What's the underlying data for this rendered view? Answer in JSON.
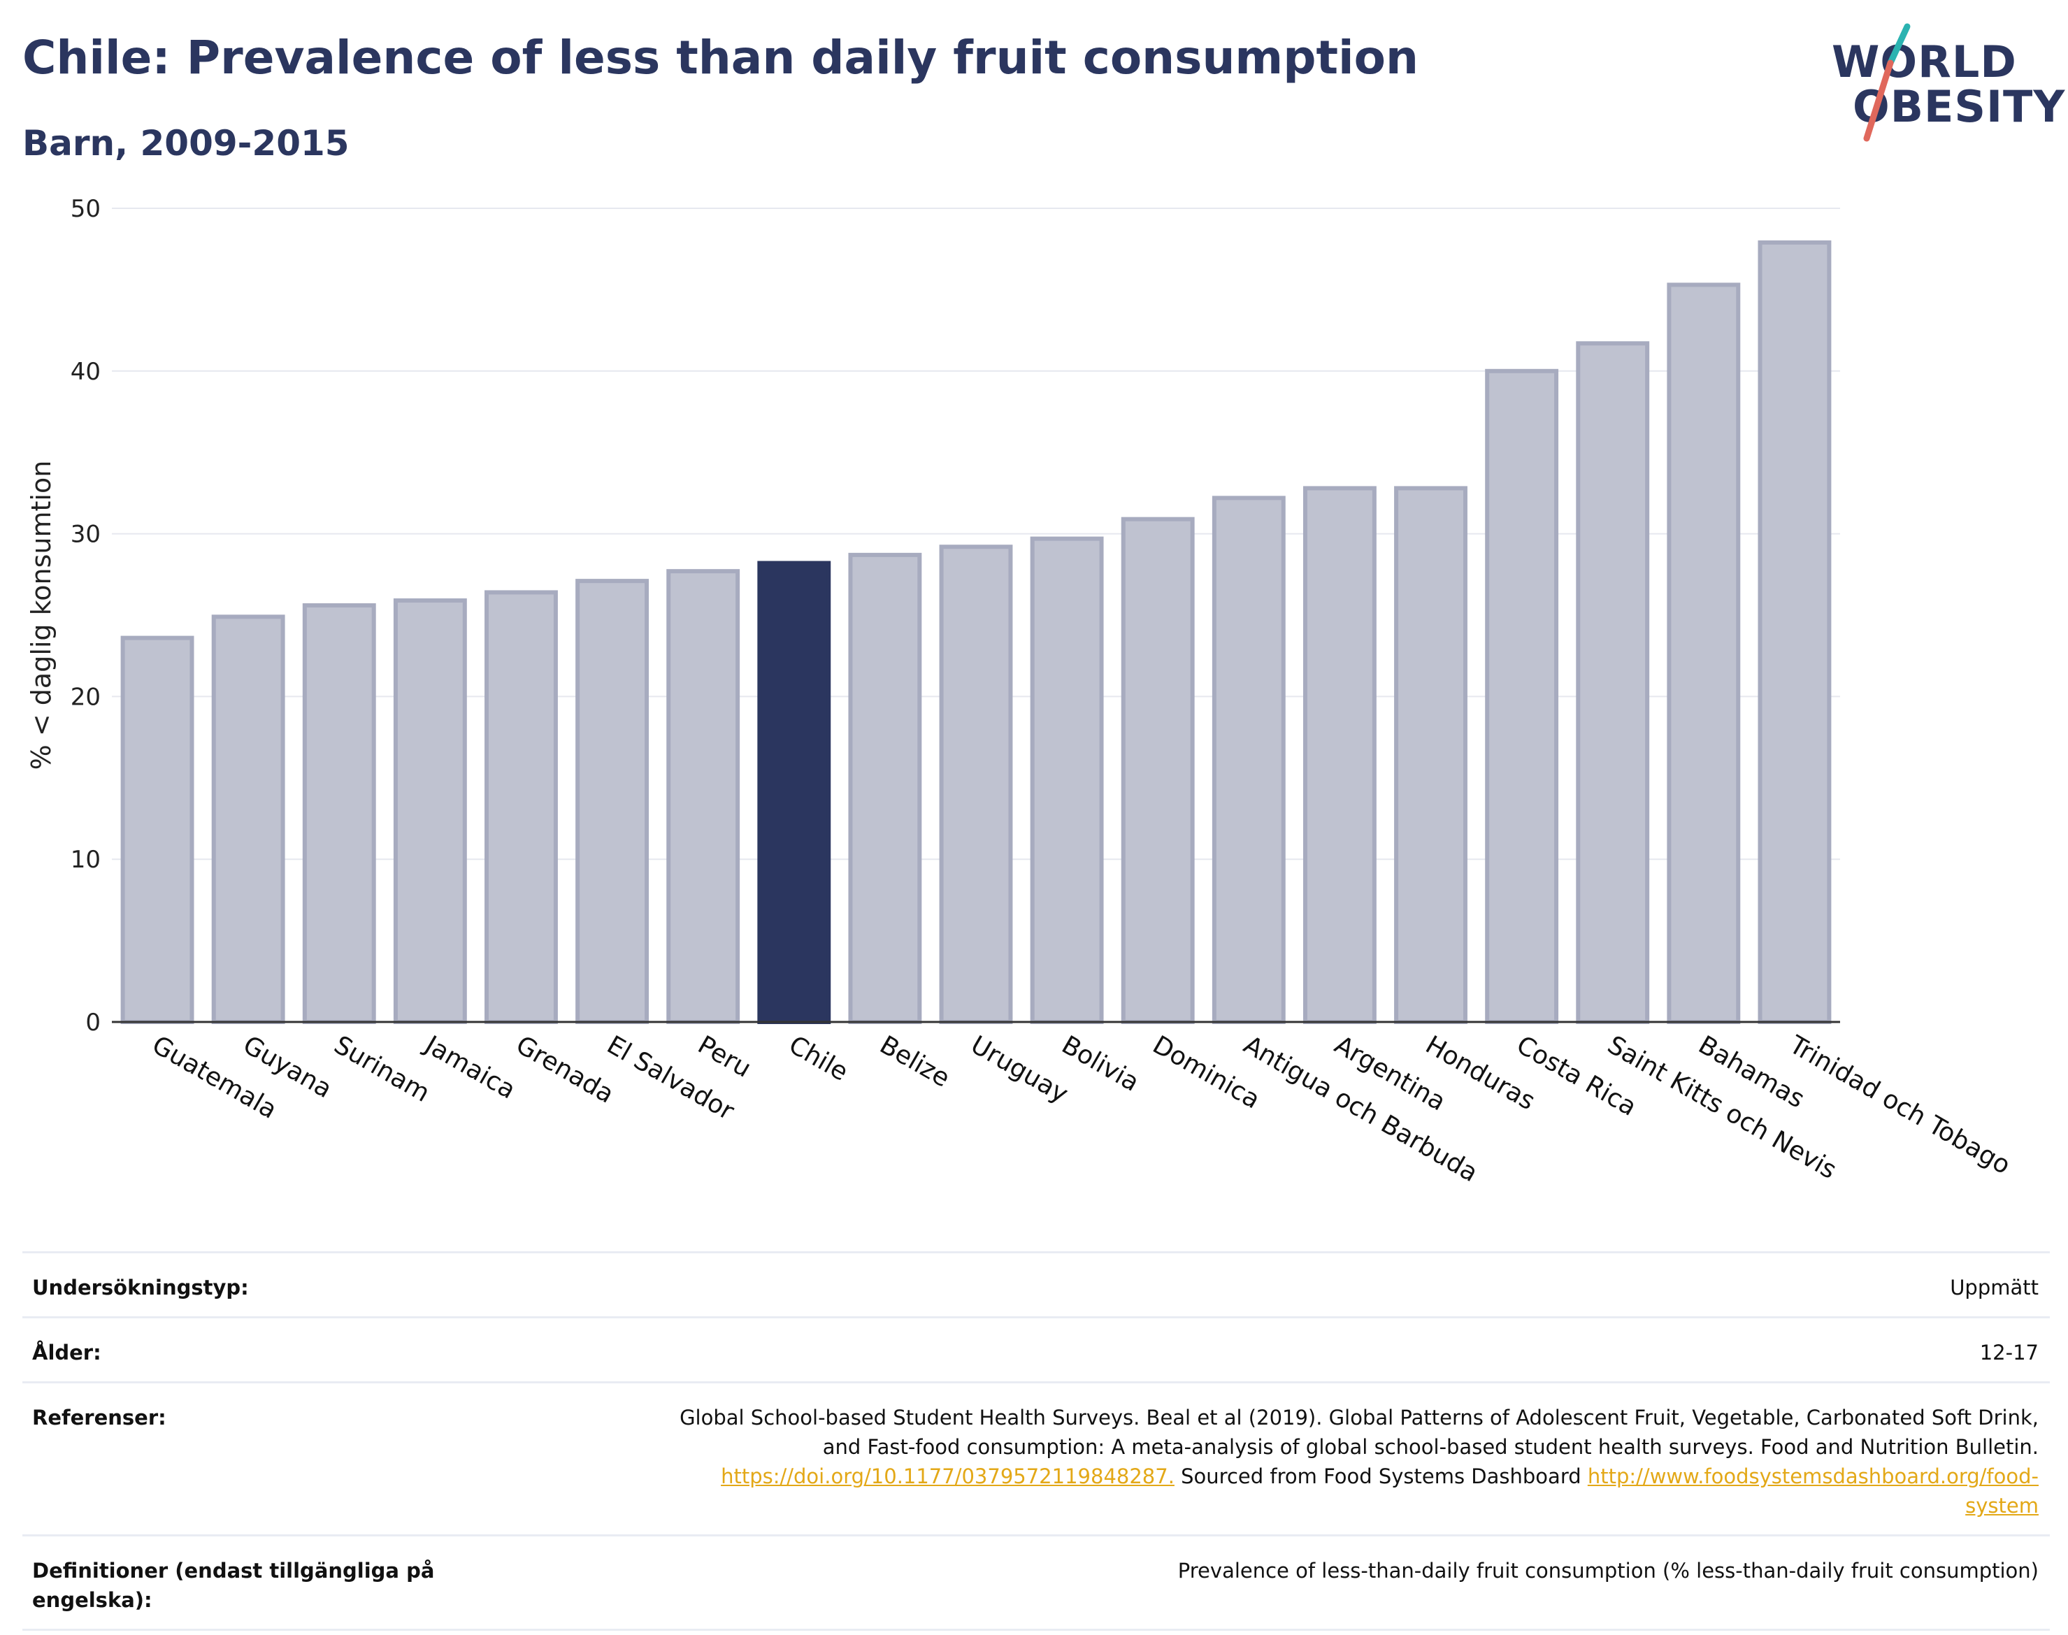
{
  "header": {
    "title": "Chile: Prevalence of less than daily fruit consumption",
    "subtitle": "Barn, 2009-2015",
    "logo_line1": "WORLD",
    "logo_line2": "OBESITY"
  },
  "colors": {
    "highlight_bar": "#2b365f",
    "other_bar": "#bfc2d0",
    "other_bar_border": "#a7abbf",
    "title": "#2b365f",
    "link": "#e3a817",
    "logo_teal": "#2bb3b1",
    "logo_coral": "#e0685c"
  },
  "chart_data": {
    "type": "bar",
    "title": "Chile: Prevalence of less than daily fruit consumption",
    "subtitle": "Barn, 2009-2015",
    "ylabel": "% < daglig konsumtion",
    "xlabel": "",
    "ylim": [
      0,
      50
    ],
    "yticks": [
      0,
      10,
      20,
      30,
      40,
      50
    ],
    "grid": true,
    "highlight": "Chile",
    "categories": [
      "Guatemala",
      "Guyana",
      "Surinam",
      "Jamaica",
      "Grenada",
      "El Salvador",
      "Peru",
      "Chile",
      "Belize",
      "Uruguay",
      "Bolivia",
      "Dominica",
      "Antigua och Barbuda",
      "Argentina",
      "Honduras",
      "Costa Rica",
      "Saint Kitts och Nevis",
      "Bahamas",
      "Trinidad och Tobago"
    ],
    "values": [
      23.6,
      24.9,
      25.6,
      25.9,
      26.4,
      27.1,
      27.7,
      28.2,
      28.7,
      29.2,
      29.7,
      30.9,
      32.2,
      32.8,
      32.8,
      40.0,
      41.7,
      45.3,
      47.9
    ]
  },
  "info": {
    "rows": [
      {
        "key": "Undersökningstyp:",
        "value": "Uppmätt"
      },
      {
        "key": "Ålder:",
        "value": "12-17"
      },
      {
        "key": "Referenser:",
        "value_lines": [
          "Global School-based Student Health Surveys. Beal et al (2019). Global Patterns of Adolescent Fruit, Vegetable, Carbonated Soft Drink,",
          "and Fast-food consumption: A meta-analysis of global school-based student health surveys. Food and Nutrition Bulletin."
        ],
        "link1": "https://doi.org/10.1177/0379572119848287.",
        "mid_text": " Sourced from Food Systems Dashboard ",
        "link2a": "http://www.foodsystemsdashboard.org/food-",
        "link2b": "system"
      },
      {
        "key": "Definitioner (endast tillgängliga på engelska):",
        "value": "Prevalence of less-than-daily fruit consumption (% less-than-daily fruit consumption)"
      }
    ]
  }
}
